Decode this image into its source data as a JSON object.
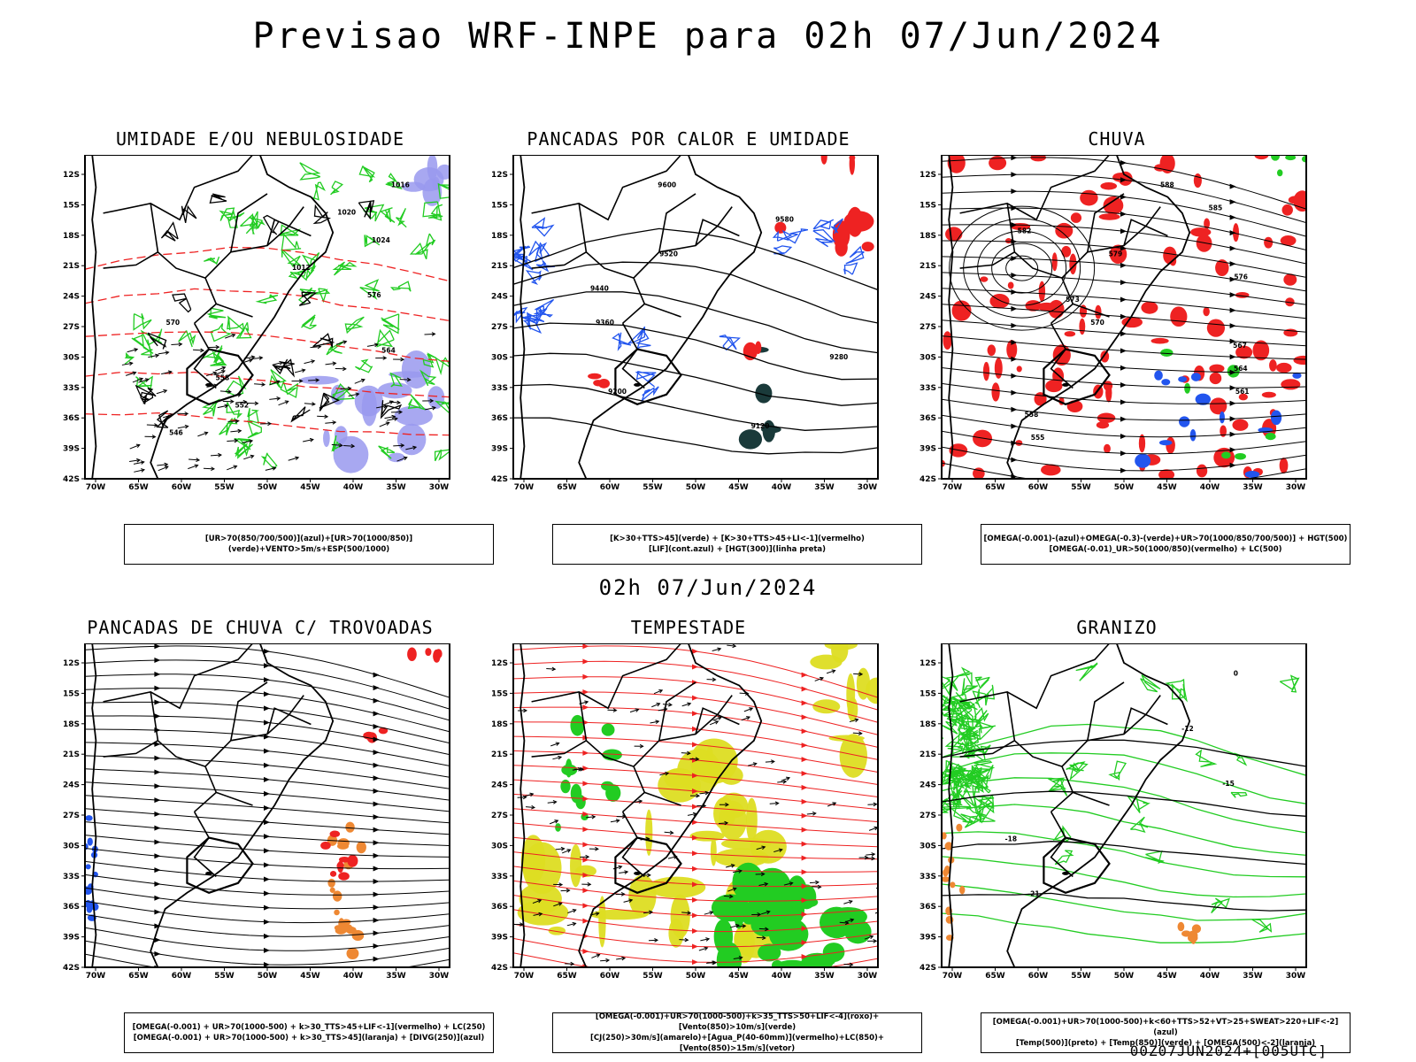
{
  "header": {
    "title": "Previsao WRF-INPE  para 02h 07/Jun/2024",
    "mid_title": "02h 07/Jun/2024",
    "footer": "00Z07JUN2024+[005UTC]"
  },
  "axes": {
    "lat_labels": [
      "12S",
      "15S",
      "18S",
      "21S",
      "24S",
      "27S",
      "30S",
      "33S",
      "36S",
      "39S",
      "42S"
    ],
    "lon_labels": [
      "70W",
      "65W",
      "60W",
      "55W",
      "50W",
      "45W",
      "40W",
      "35W",
      "30W"
    ]
  },
  "colors": {
    "green": "#22cc22",
    "red": "#ee2222",
    "blue": "#2255ee",
    "lavender": "#9999ee",
    "yellow": "#dddd22",
    "orange": "#ee8833",
    "dark": "#1a3a3a"
  },
  "panels": [
    {
      "title": "UMIDADE E/OU NEBULOSIDADE",
      "legend": [
        "[UR>70(850/700/500)](azul)+[UR>70(1000/850)](verde)+VENTO>5m/s+ESP(500/1000)"
      ],
      "contour_labels": [
        "1016",
        "1020",
        "1024",
        "1012",
        "576",
        "570",
        "564",
        "558",
        "552",
        "546"
      ]
    },
    {
      "title": "PANCADAS POR CALOR E UMIDADE",
      "legend": [
        "[K>30+TTS>45](verde) + [K>30+TTS>45+LI<-1](vermelho)",
        "[LIF](cont.azul) + [HGT(300)](linha preta)"
      ],
      "contour_labels": [
        "9600",
        "9580",
        "9520",
        "9440",
        "9360",
        "9280",
        "9200",
        "9120"
      ]
    },
    {
      "title": "CHUVA",
      "legend": [
        "[OMEGA(-0.001)-(azul)+OMEGA(-0.3)-(verde)+UR>70(1000/850/700/500)] + HGT(500)",
        "[OMEGA(-0.01)_UR>50(1000/850)(vermelho) + LC(500)"
      ],
      "contour_labels": [
        "588",
        "585",
        "582",
        "579",
        "576",
        "573",
        "570",
        "567",
        "564",
        "561",
        "558",
        "555"
      ]
    },
    {
      "title": "PANCADAS DE CHUVA C/ TROVOADAS",
      "legend": [
        "[OMEGA(-0.001) + UR>70(1000-500) + k>30_TTS>45+LIF<-1](vermelho) + LC(250)",
        "[OMEGA(-0.001) + UR>70(1000-500) + k>30_TTS>45](laranja) + [DIVG(250)](azul)"
      ],
      "contour_labels": []
    },
    {
      "title": "TEMPESTADE",
      "legend": [
        "[OMEGA(-0.001)+UR>70(1000-500)+k>35_TTS>50+LIF<-4](roxo)+[Vento(850)>10m/s](verde)",
        "[CJ(250)>30m/s](amarelo)+[Agua_P(40-60mm)](vermelho)+LC(850)+[Vento(850)>15m/s](vetor)"
      ],
      "contour_labels": []
    },
    {
      "title": "GRANIZO",
      "legend": [
        "[OMEGA(-0.001)+UR>70(1000-500)+k<60+TTS>52+VT>25+SWEAT>220+LIF<-2](azul)",
        "[Temp(500)](preto) + [Temp(850)](verde) + [OMEGA(500)<-2](laranja)"
      ],
      "contour_labels": [
        "0",
        "-12",
        "-15",
        "-18",
        "-21"
      ]
    }
  ]
}
